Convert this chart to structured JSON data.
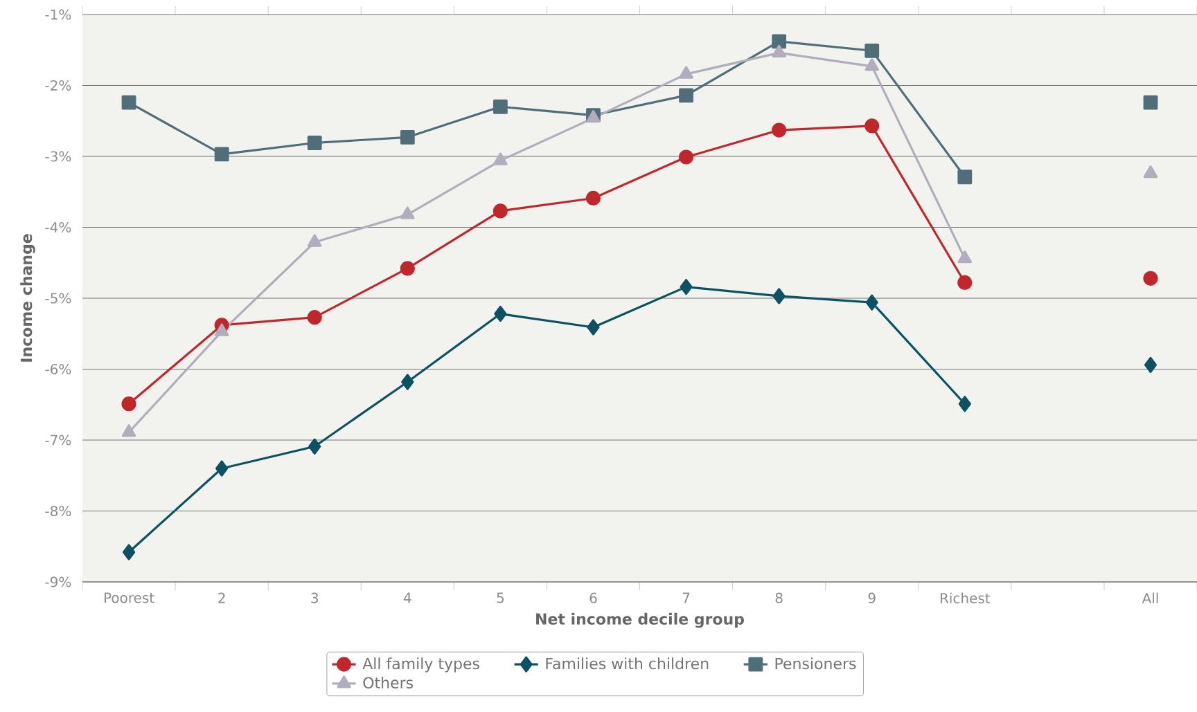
{
  "chart_data": {
    "type": "line",
    "xlabel": "Net income decile group",
    "ylabel": "Income change",
    "categories": [
      "Poorest",
      "2",
      "3",
      "4",
      "5",
      "6",
      "7",
      "8",
      "9",
      "Richest",
      null,
      "All"
    ],
    "series": [
      {
        "name": "All family types",
        "color": "#c0272d",
        "marker": "circle",
        "values": [
          -6.49,
          -5.38,
          -5.27,
          -4.58,
          -3.77,
          -3.59,
          -3.01,
          -2.63,
          -2.57,
          -4.78,
          null,
          -4.72
        ]
      },
      {
        "name": "Families with children",
        "color": "#0d5263",
        "marker": "diamond",
        "values": [
          -8.58,
          -7.4,
          -7.09,
          -6.18,
          -5.22,
          -5.41,
          -4.84,
          -4.97,
          -5.06,
          -6.49,
          null,
          -5.94
        ]
      },
      {
        "name": "Pensioners",
        "color": "#4f6e7a",
        "marker": "square",
        "values": [
          -2.24,
          -2.97,
          -2.81,
          -2.73,
          -2.3,
          -2.42,
          -2.14,
          -1.38,
          -1.51,
          -3.29,
          null,
          -2.24
        ]
      },
      {
        "name": "Others",
        "color": "#b2adbd",
        "marker": "triangle",
        "values": [
          -6.89,
          -5.47,
          -4.21,
          -3.82,
          -3.06,
          -2.46,
          -1.84,
          -1.54,
          -1.73,
          -4.44,
          null,
          -3.24
        ]
      }
    ],
    "ylim": [
      -9,
      -1
    ],
    "yticks": [
      {
        "value": -9,
        "label": "-9%"
      },
      {
        "value": -8,
        "label": "-8%"
      },
      {
        "value": -7,
        "label": "-7%"
      },
      {
        "value": -6,
        "label": "-6%"
      },
      {
        "value": -5,
        "label": "-5%"
      },
      {
        "value": -4,
        "label": "-4%"
      },
      {
        "value": -3,
        "label": "-3%"
      },
      {
        "value": -2,
        "label": "-2%"
      },
      {
        "value": -1,
        "label": "-1%"
      }
    ],
    "grid": "y",
    "legend": "bottom",
    "line_style": "solid"
  }
}
